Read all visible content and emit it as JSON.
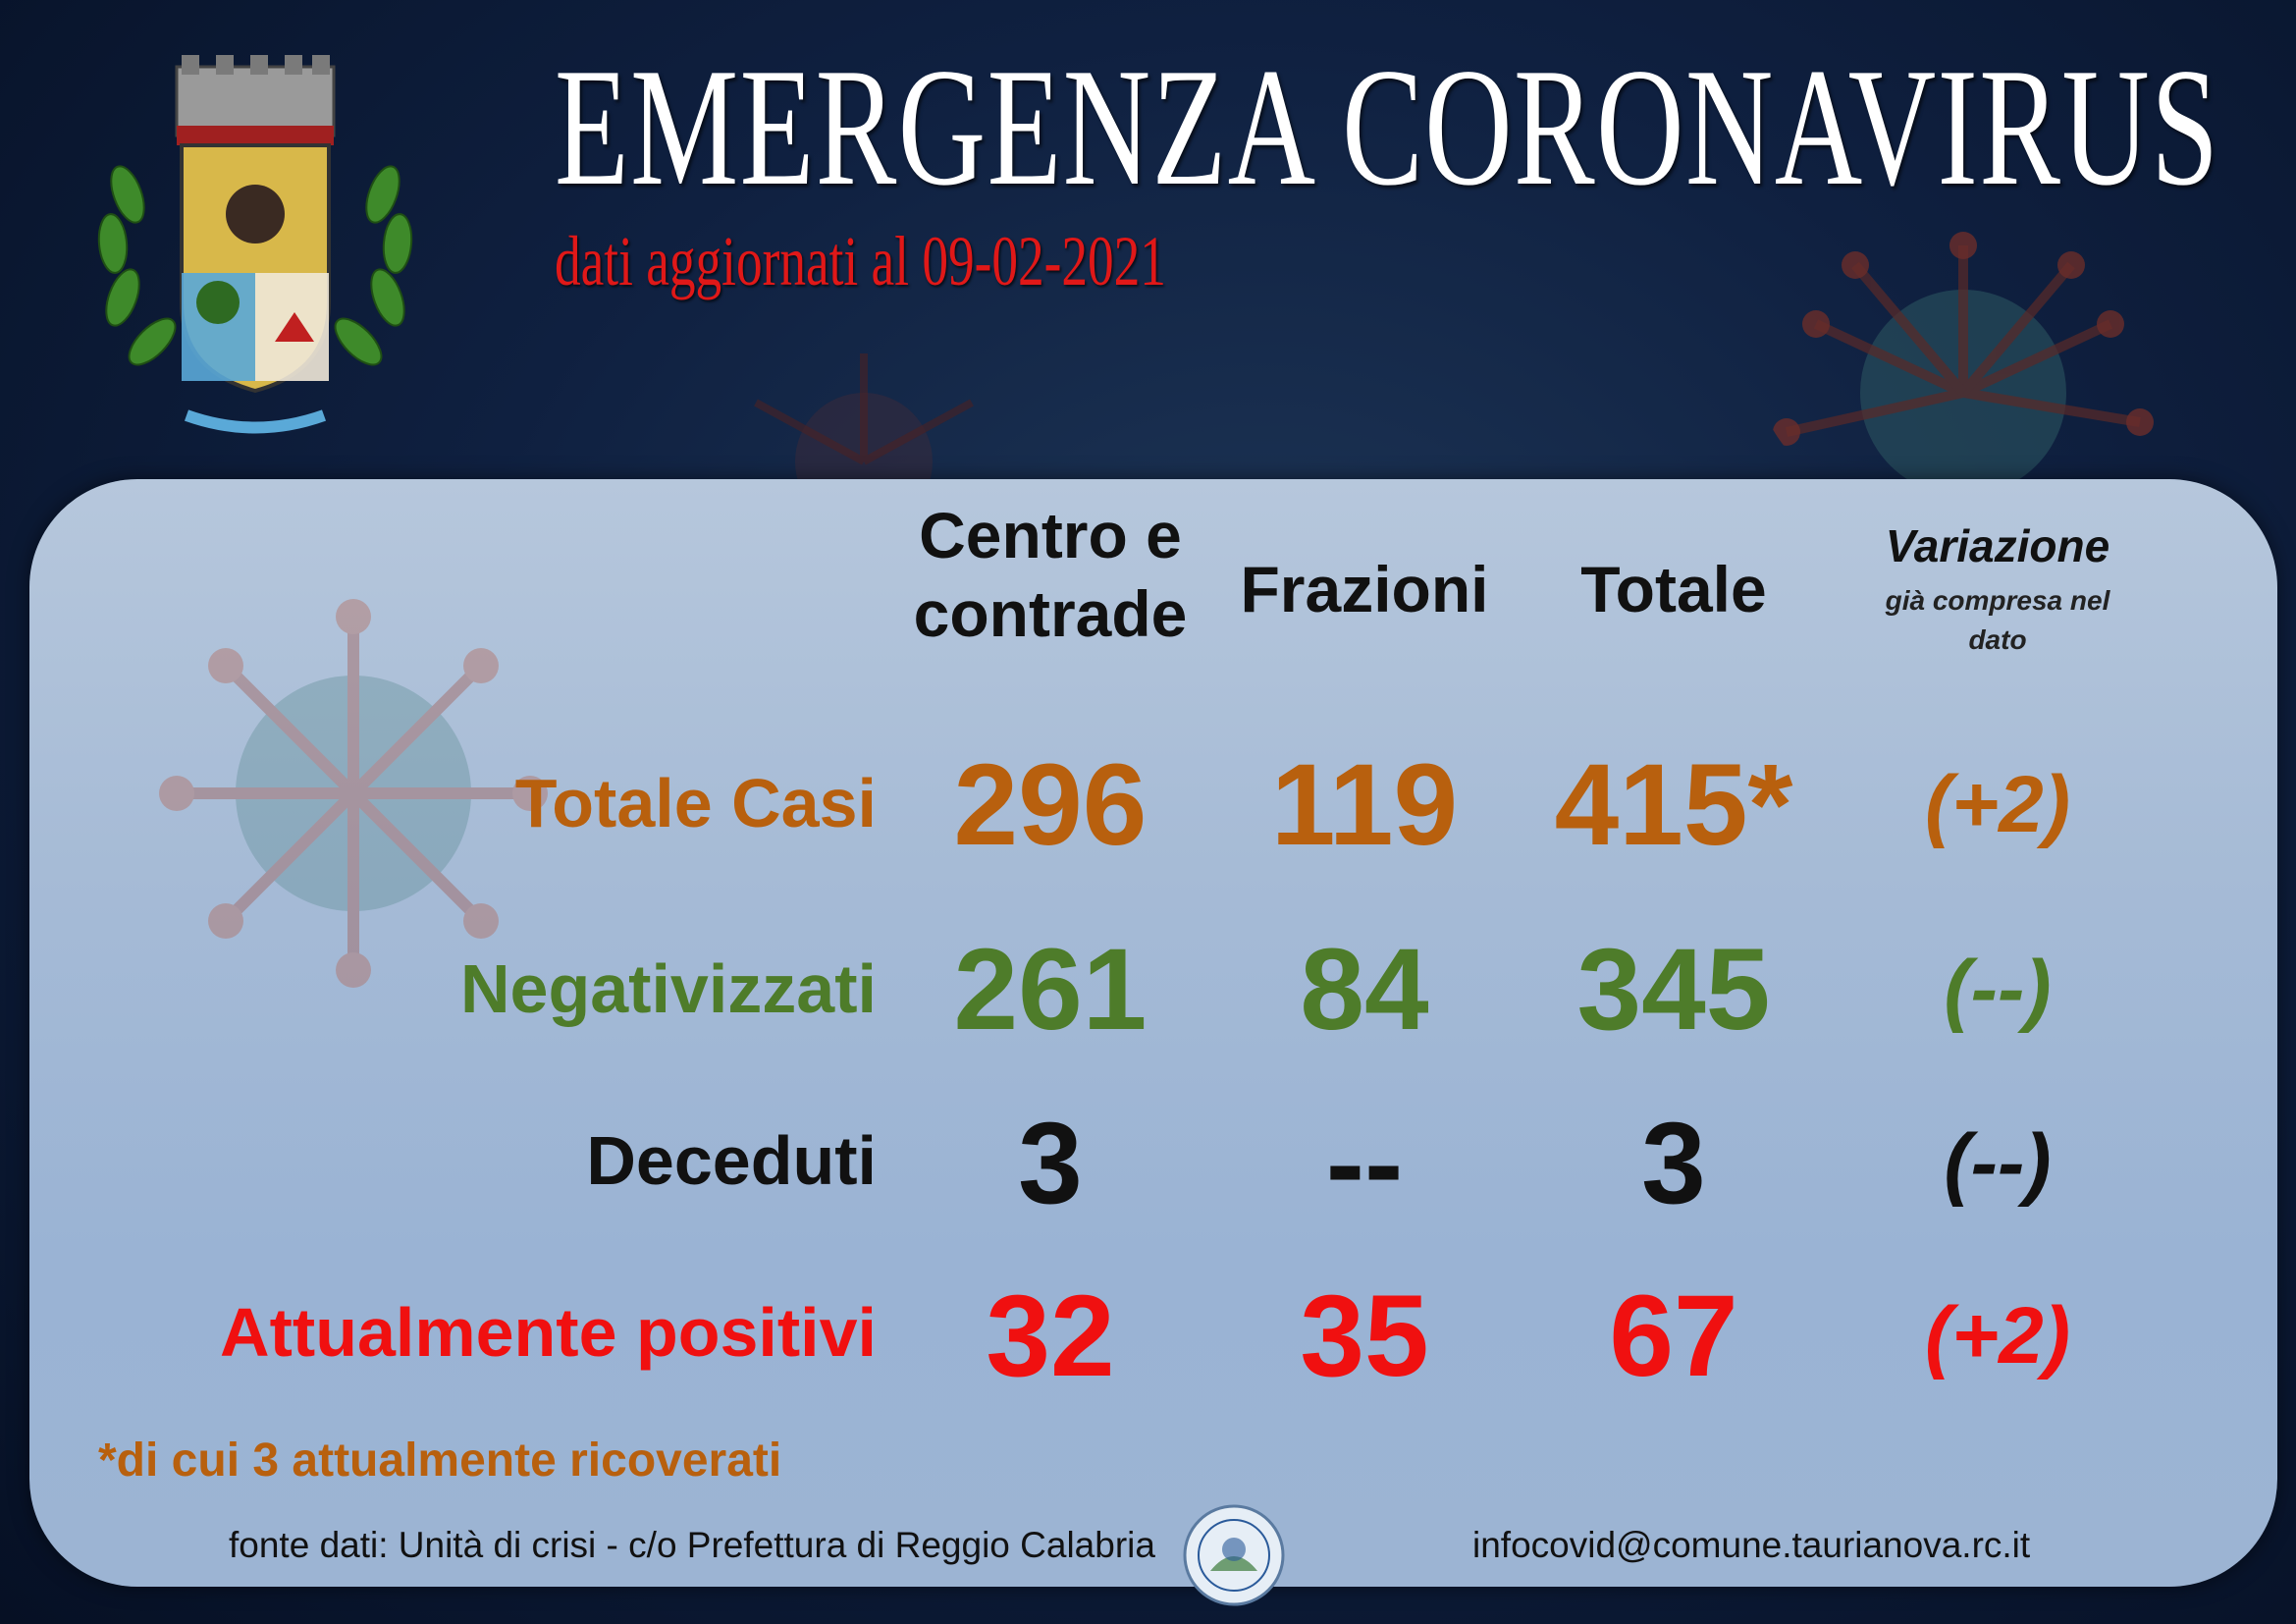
{
  "header": {
    "title": "EMERGENZA CORONAVIRUS",
    "subtitle": "dati aggiornati al 09-02-2021"
  },
  "columns": {
    "centro_line1": "Centro e",
    "centro_line2": "contrade",
    "frazioni": "Frazioni",
    "totale": "Totale",
    "variazione": "Variazione",
    "variazione_note_line1": "già compresa nel",
    "variazione_note_line2": "dato"
  },
  "rows": [
    {
      "label": "Totale Casi",
      "centro": "296",
      "frazioni": "119",
      "totale": "415*",
      "variazione": "(+2)",
      "color": "#b8600e"
    },
    {
      "label": "Negativizzati",
      "centro": "261",
      "frazioni": "84",
      "totale": "345",
      "variazione": "(--)",
      "color": "#4e7c2a"
    },
    {
      "label": "Deceduti",
      "centro": "3",
      "frazioni": "--",
      "totale": "3",
      "variazione": "(--)",
      "color": "#111111"
    },
    {
      "label": "Attualmente positivi",
      "centro": "32",
      "frazioni": "35",
      "totale": "67",
      "variazione": "(+2)",
      "color": "#f01010"
    }
  ],
  "footnote": "*di cui 3 attualmente ricoverati",
  "source": "fonte dati: Unità di crisi - c/o Prefettura di Reggio Calabria",
  "email": "infocovid@comune.taurianova.rc.it",
  "icons": {
    "emblem": "coat-of-arms-icon",
    "prefettura_logo": "prefettura-seal-icon"
  }
}
